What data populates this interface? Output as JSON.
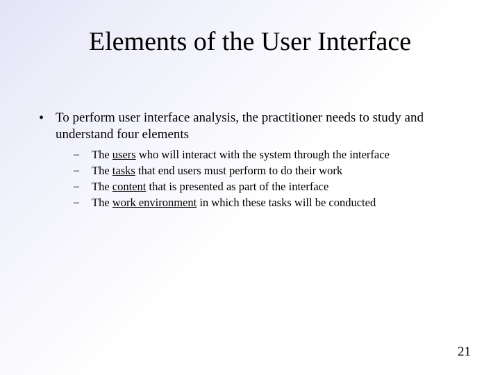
{
  "slide": {
    "title": "Elements of the User Interface",
    "page_number": "21",
    "background_gradient_start": "#e4e4f8",
    "background_gradient_end": "#ffffff",
    "title_fontsize": 38,
    "body_fontsize": 19,
    "sub_fontsize": 16.5,
    "text_color": "#000000",
    "font_family": "Times New Roman"
  },
  "bullet": {
    "marker": "•",
    "text": "To perform user interface analysis, the practitioner needs to study and understand four elements"
  },
  "sub_marker": "–",
  "sub_items": [
    {
      "prefix": "The ",
      "underlined": "users",
      "suffix": " who will interact with the system through the interface"
    },
    {
      "prefix": "The ",
      "underlined": "tasks",
      "suffix": " that end users must perform to do their work"
    },
    {
      "prefix": "The ",
      "underlined": "content",
      "suffix": " that is presented as part of the interface"
    },
    {
      "prefix": "The ",
      "underlined": "work environment",
      "suffix": " in which these tasks will be conducted"
    }
  ]
}
